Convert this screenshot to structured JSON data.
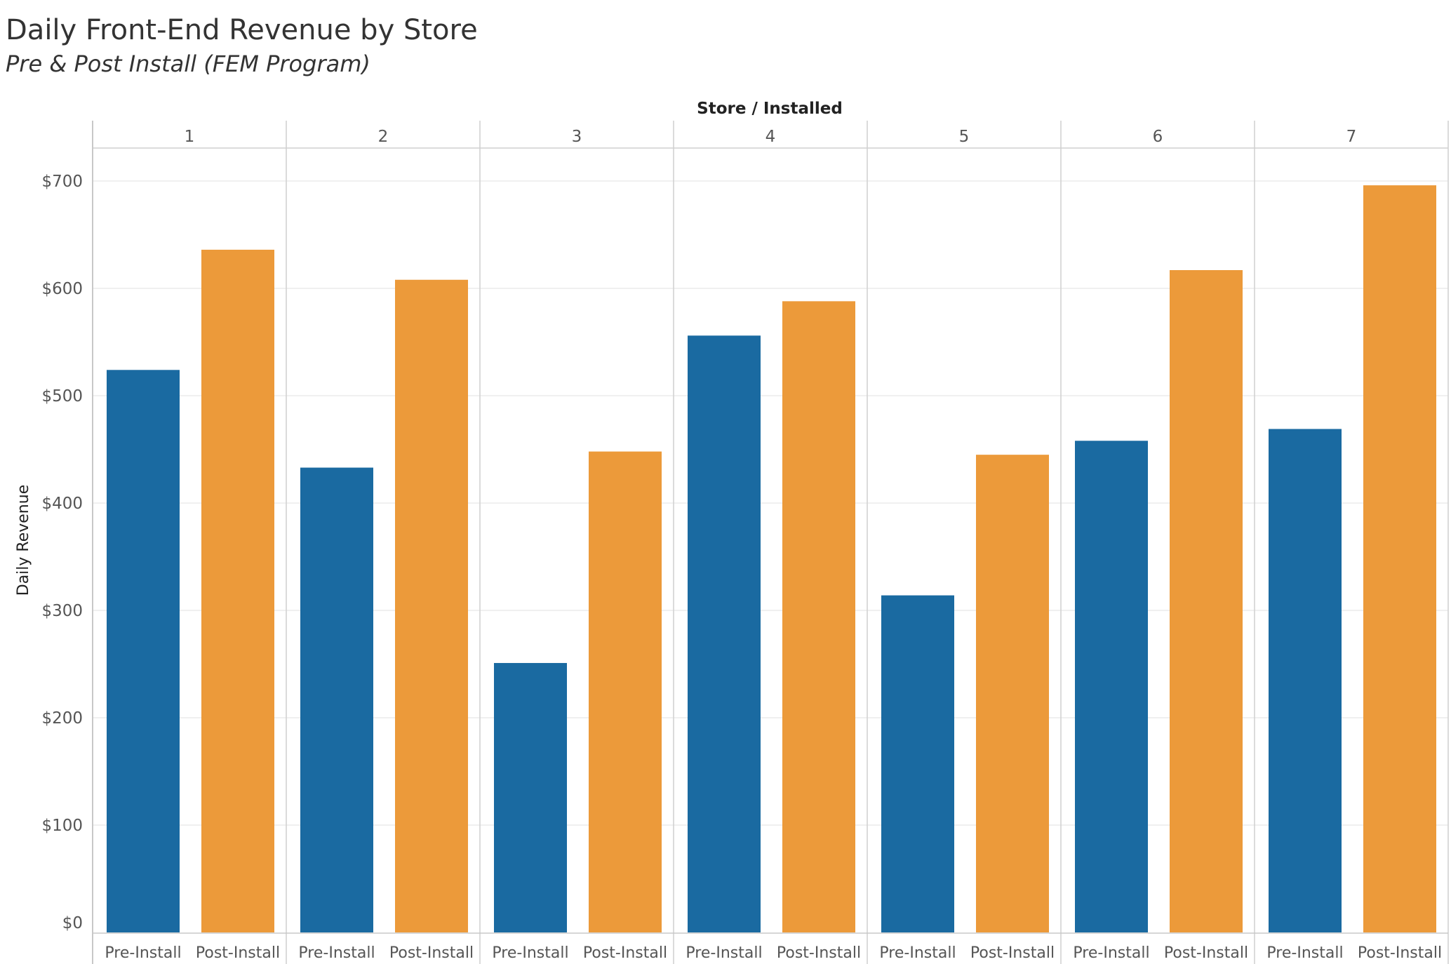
{
  "chart_data": {
    "type": "bar",
    "title": "Daily Front-End Revenue by Store",
    "subtitle": "Pre & Post Install (FEM Program)",
    "header_title": "Store / Installed",
    "ylabel": "Daily Revenue",
    "ylim": [
      0,
      730
    ],
    "ticks": [
      0,
      100,
      200,
      300,
      400,
      500,
      600,
      700
    ],
    "tick_labels": [
      "$0",
      "$100",
      "$200",
      "$300",
      "$400",
      "$500",
      "$600",
      "$700"
    ],
    "grid": true,
    "categories": [
      "1",
      "2",
      "3",
      "4",
      "5",
      "6",
      "7"
    ],
    "sub_categories": [
      "Pre-Install",
      "Post-Install"
    ],
    "series": [
      {
        "name": "Pre-Install",
        "color": "#1a6aa1",
        "values": [
          524,
          433,
          251,
          556,
          314,
          458,
          469
        ]
      },
      {
        "name": "Post-Install",
        "color": "#ec9a3a",
        "values": [
          636,
          608,
          448,
          588,
          445,
          617,
          696
        ]
      }
    ]
  }
}
